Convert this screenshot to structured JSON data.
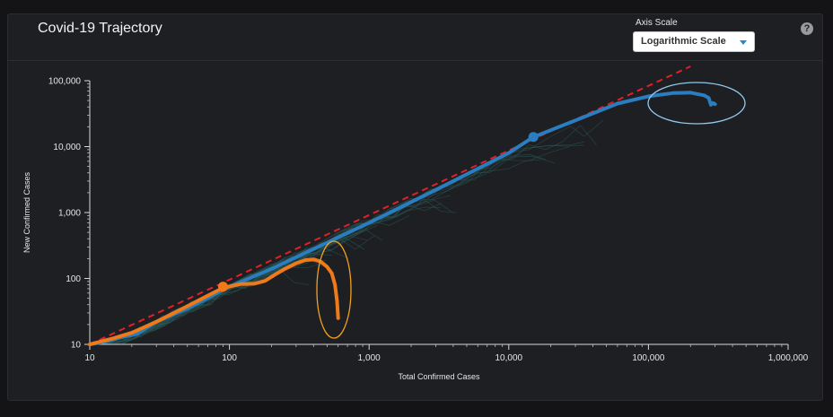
{
  "header": {
    "title": "Covid-19 Trajectory",
    "axis_scale_label": "Axis Scale",
    "axis_scale_value": "Logarithmic Scale",
    "help_symbol": "?"
  },
  "colors": {
    "background": "#1e1f22",
    "blue_series": "#2a7ec0",
    "orange_series": "#f07a1a",
    "reference_line": "#e0202a",
    "background_traces": "#2c5a57",
    "blue_highlight": "#8ec9ee",
    "orange_highlight": "#f0a020",
    "axis_text": "#e6e6e6"
  },
  "icons": {
    "help": "question-circle-icon",
    "dropdown": "caret-down-icon"
  },
  "chart_data": {
    "type": "line",
    "title": "",
    "xlabel": "Total Confirmed Cases",
    "ylabel": "New Confirmed Cases",
    "xscale": "log",
    "yscale": "log",
    "xlim": [
      10,
      1000000
    ],
    "ylim": [
      10,
      100000
    ],
    "x_ticks": [
      10,
      100,
      1000,
      10000,
      100000,
      1000000
    ],
    "x_tick_labels": [
      "10",
      "100",
      "1,000",
      "10,000",
      "100,000",
      "1,000,000"
    ],
    "y_ticks": [
      10,
      100,
      1000,
      10000,
      100000
    ],
    "y_tick_labels": [
      "10",
      "100",
      "1,000",
      "10,000",
      "100,000"
    ],
    "grid": false,
    "reference_line": {
      "style": "dashed",
      "points": [
        [
          10,
          10
        ],
        [
          200000,
          165000
        ]
      ]
    },
    "series": [
      {
        "color": "blue",
        "points": [
          [
            10,
            10
          ],
          [
            13,
            11
          ],
          [
            16,
            12.5
          ],
          [
            22,
            14.5
          ],
          [
            30,
            22
          ],
          [
            50,
            35
          ],
          [
            100,
            75
          ],
          [
            200,
            140
          ],
          [
            500,
            350
          ],
          [
            1000,
            700
          ],
          [
            3000,
            2200
          ],
          [
            10000,
            8000
          ],
          [
            15000,
            14000
          ],
          [
            30000,
            25000
          ],
          [
            60000,
            45000
          ],
          [
            100000,
            58000
          ],
          [
            150000,
            65000
          ],
          [
            200000,
            66000
          ],
          [
            250000,
            60000
          ],
          [
            270000,
            55000
          ],
          [
            280000,
            43000
          ],
          [
            290000,
            46000
          ],
          [
            300000,
            44000
          ]
        ],
        "markers": [
          [
            15000,
            14000
          ]
        ]
      },
      {
        "color": "orange",
        "points": [
          [
            10,
            10
          ],
          [
            15,
            12.5
          ],
          [
            20,
            15
          ],
          [
            30,
            22
          ],
          [
            50,
            38
          ],
          [
            70,
            55
          ],
          [
            90,
            72
          ],
          [
            120,
            82
          ],
          [
            150,
            83
          ],
          [
            180,
            92
          ],
          [
            220,
            120
          ],
          [
            250,
            140
          ],
          [
            300,
            170
          ],
          [
            350,
            190
          ],
          [
            400,
            195
          ],
          [
            450,
            180
          ],
          [
            500,
            150
          ],
          [
            540,
            120
          ],
          [
            570,
            80
          ],
          [
            590,
            45
          ],
          [
            600,
            25
          ]
        ],
        "markers": [
          [
            90,
            75
          ]
        ]
      }
    ]
  }
}
